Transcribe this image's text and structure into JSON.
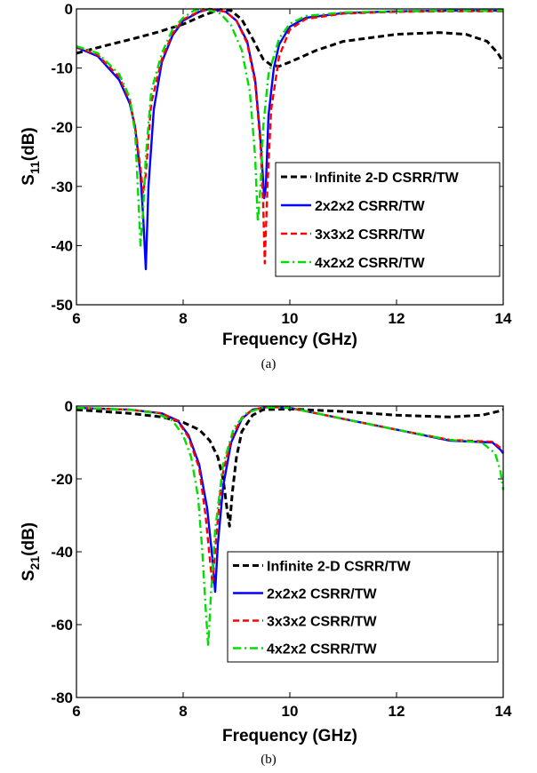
{
  "chart_data": [
    {
      "type": "line",
      "caption": "(a)",
      "xlabel": "Frequency (GHz)",
      "ylabel_main": "S",
      "ylabel_sub": "11",
      "ylabel_unit": "(dB)",
      "xlim": [
        6,
        14
      ],
      "ylim": [
        -50,
        0
      ],
      "xticks": [
        "6",
        "8",
        "10",
        "12",
        "14"
      ],
      "yticks": [
        "0",
        "-10",
        "-20",
        "-30",
        "-40",
        "-50"
      ],
      "grid": false,
      "legend_position": "bottom-right",
      "series": [
        {
          "name": "Infinite 2-D CSRR/TW",
          "color": "#000000",
          "dash": "dashed",
          "x": [
            6.0,
            6.5,
            7.0,
            7.5,
            8.0,
            8.4,
            8.7,
            8.9,
            9.1,
            9.3,
            9.5,
            9.65,
            9.8,
            10.0,
            10.5,
            11.0,
            12.0,
            12.8,
            13.3,
            13.7,
            13.9,
            14.0
          ],
          "y": [
            -7.5,
            -6.3,
            -5.2,
            -4.0,
            -2.6,
            -1.0,
            -0.1,
            -0.3,
            -1.8,
            -5.0,
            -8.5,
            -9.5,
            -9.7,
            -9.0,
            -7.0,
            -5.5,
            -4.3,
            -4.0,
            -4.3,
            -5.5,
            -7.5,
            -9.0
          ]
        },
        {
          "name": "2x2x2 CSRR/TW",
          "color": "#0000ff",
          "dash": "solid",
          "x": [
            6.0,
            6.4,
            6.8,
            7.0,
            7.1,
            7.2,
            7.25,
            7.3,
            7.35,
            7.45,
            7.6,
            7.8,
            8.0,
            8.3,
            8.5,
            8.8,
            9.0,
            9.2,
            9.35,
            9.45,
            9.52,
            9.55,
            9.6,
            9.7,
            9.8,
            10.0,
            10.3,
            11.0,
            12.0,
            13.0,
            14.0
          ],
          "y": [
            -6.5,
            -8.0,
            -12.0,
            -16.0,
            -20.0,
            -28.0,
            -35.0,
            -44.0,
            -30.0,
            -17.0,
            -9.0,
            -4.5,
            -2.0,
            -0.5,
            0.0,
            -0.5,
            -2.0,
            -5.5,
            -12.0,
            -22.0,
            -32.0,
            -30.0,
            -18.0,
            -10.0,
            -6.0,
            -3.0,
            -1.5,
            -0.7,
            -0.4,
            -0.3,
            -0.3
          ]
        },
        {
          "name": "3x3x2 CSRR/TW",
          "color": "#ff0000",
          "dash": "dashed",
          "x": [
            6.0,
            6.4,
            6.8,
            7.0,
            7.1,
            7.2,
            7.25,
            7.3,
            7.4,
            7.6,
            7.8,
            8.0,
            8.3,
            8.5,
            8.8,
            9.0,
            9.2,
            9.35,
            9.45,
            9.5,
            9.53,
            9.58,
            9.65,
            9.8,
            10.0,
            10.3,
            11.0,
            12.0,
            13.0,
            14.0
          ],
          "y": [
            -6.4,
            -7.8,
            -11.5,
            -15.5,
            -20.0,
            -27.0,
            -31.0,
            -28.0,
            -16.0,
            -8.5,
            -4.2,
            -1.8,
            -0.4,
            0.0,
            -0.5,
            -2.0,
            -5.8,
            -12.5,
            -23.0,
            -33.0,
            -43.0,
            -30.0,
            -17.0,
            -8.0,
            -3.5,
            -1.7,
            -0.8,
            -0.5,
            -0.4,
            -0.4
          ]
        },
        {
          "name": "4x2x2 CSRR/TW",
          "color": "#00dd00",
          "dash": "dashdot",
          "x": [
            6.0,
            6.4,
            6.8,
            7.0,
            7.1,
            7.15,
            7.2,
            7.25,
            7.3,
            7.4,
            7.6,
            7.8,
            8.0,
            8.2,
            8.4,
            8.7,
            8.9,
            9.1,
            9.25,
            9.35,
            9.4,
            9.45,
            9.5,
            9.6,
            9.8,
            10.0,
            10.3,
            11.0,
            12.0,
            13.0,
            14.0
          ],
          "y": [
            -6.3,
            -7.5,
            -11.0,
            -15.0,
            -21.0,
            -30.0,
            -40.0,
            -34.0,
            -25.0,
            -14.0,
            -7.5,
            -3.5,
            -1.5,
            -0.3,
            0.0,
            -0.8,
            -2.8,
            -7.0,
            -14.0,
            -25.0,
            -36.0,
            -30.0,
            -20.0,
            -11.0,
            -5.0,
            -2.5,
            -1.2,
            -0.6,
            -0.4,
            -0.3,
            -0.3
          ]
        }
      ]
    },
    {
      "type": "line",
      "caption": "(b)",
      "xlabel": "Frequency (GHz)",
      "ylabel_main": "S",
      "ylabel_sub": "21",
      "ylabel_unit": "(dB)",
      "xlim": [
        6,
        14
      ],
      "ylim": [
        -80,
        0
      ],
      "xticks": [
        "6",
        "8",
        "10",
        "12",
        "14"
      ],
      "yticks": [
        "0",
        "-20",
        "-40",
        "-60",
        "-80"
      ],
      "grid": false,
      "legend_position": "bottom-right",
      "series": [
        {
          "name": "Infinite 2-D CSRR/TW",
          "color": "#000000",
          "dash": "dashed",
          "x": [
            6.0,
            7.0,
            7.6,
            8.0,
            8.3,
            8.5,
            8.65,
            8.75,
            8.82,
            8.87,
            8.92,
            9.0,
            9.1,
            9.3,
            9.5,
            10.0,
            11.0,
            12.0,
            13.0,
            13.6,
            13.9,
            14.0
          ],
          "y": [
            -1.0,
            -2.0,
            -3.0,
            -4.5,
            -6.5,
            -9.5,
            -14.0,
            -20.0,
            -28.0,
            -33.0,
            -24.0,
            -14.0,
            -7.0,
            -2.5,
            -1.0,
            -0.8,
            -1.5,
            -2.5,
            -3.0,
            -2.5,
            -1.5,
            -1.0
          ]
        },
        {
          "name": "2x2x2 CSRR/TW",
          "color": "#0000ff",
          "dash": "solid",
          "x": [
            6.0,
            7.0,
            7.6,
            7.9,
            8.1,
            8.3,
            8.45,
            8.55,
            8.6,
            8.65,
            8.75,
            8.9,
            9.1,
            9.3,
            9.6,
            10.0,
            10.5,
            11.0,
            12.0,
            13.0,
            13.8,
            13.95,
            14.0
          ],
          "y": [
            -0.5,
            -1.0,
            -2.0,
            -4.0,
            -8.0,
            -16.0,
            -28.0,
            -42.0,
            -51.0,
            -38.0,
            -22.0,
            -10.0,
            -3.5,
            -1.0,
            -0.2,
            -0.5,
            -2.0,
            -3.5,
            -6.5,
            -9.5,
            -10.0,
            -12.0,
            -13.0
          ]
        },
        {
          "name": "3x3x2 CSRR/TW",
          "color": "#ff0000",
          "dash": "dashed",
          "x": [
            6.0,
            7.0,
            7.6,
            7.9,
            8.1,
            8.3,
            8.42,
            8.5,
            8.55,
            8.62,
            8.72,
            8.9,
            9.1,
            9.3,
            9.6,
            10.0,
            10.5,
            11.0,
            12.0,
            13.0,
            13.8,
            13.95,
            14.0
          ],
          "y": [
            -0.5,
            -1.0,
            -2.0,
            -4.2,
            -8.5,
            -17.0,
            -30.0,
            -42.0,
            -49.0,
            -36.0,
            -20.0,
            -9.0,
            -3.2,
            -1.0,
            -0.2,
            -0.5,
            -2.0,
            -3.5,
            -6.5,
            -9.3,
            -9.8,
            -11.5,
            -12.5
          ]
        },
        {
          "name": "4x2x2 CSRR/TW",
          "color": "#00dd00",
          "dash": "dashdot",
          "x": [
            6.0,
            7.0,
            7.5,
            7.8,
            8.0,
            8.15,
            8.28,
            8.36,
            8.42,
            8.47,
            8.52,
            8.6,
            8.75,
            8.95,
            9.2,
            9.5,
            10.0,
            10.5,
            11.0,
            12.0,
            13.0,
            13.6,
            13.85,
            13.95,
            14.0
          ],
          "y": [
            -0.5,
            -1.0,
            -2.0,
            -4.0,
            -8.0,
            -14.0,
            -25.0,
            -40.0,
            -55.0,
            -66.0,
            -52.0,
            -34.0,
            -16.0,
            -6.0,
            -1.8,
            -0.4,
            -0.5,
            -2.0,
            -3.5,
            -6.5,
            -9.3,
            -10.0,
            -13.0,
            -18.0,
            -23.0
          ]
        }
      ]
    }
  ]
}
